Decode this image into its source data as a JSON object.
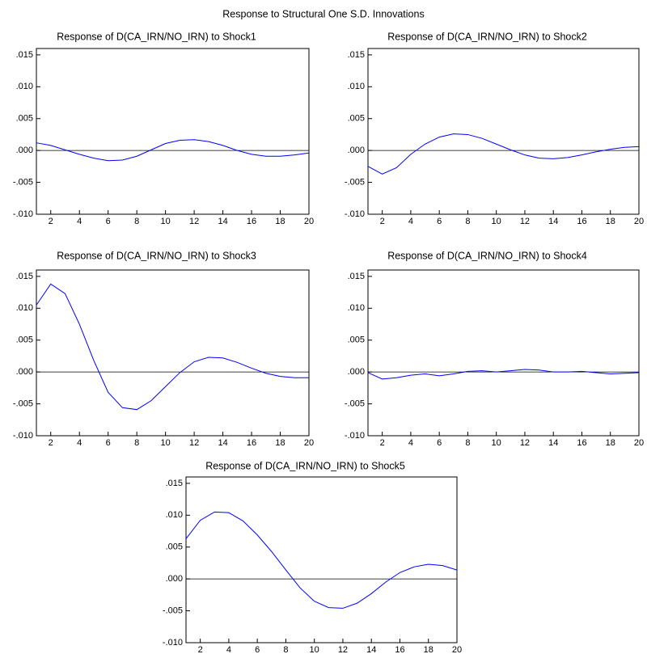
{
  "title": "Response to Structural One S.D. Innovations",
  "chart_data": [
    {
      "type": "line",
      "title": "Response of D(CA_IRN/NO_IRN) to Shock1",
      "x": [
        1,
        2,
        3,
        4,
        5,
        6,
        7,
        8,
        9,
        10,
        11,
        12,
        13,
        14,
        15,
        16,
        17,
        18,
        19,
        20
      ],
      "series": [
        {
          "color": "#0000ff",
          "values": [
            0.0012,
            0.0008,
            0.0001,
            -0.0006,
            -0.0012,
            -0.0016,
            -0.0015,
            -0.0009,
            0.0001,
            0.0011,
            0.0016,
            0.0017,
            0.0014,
            0.0008,
            0.0,
            -0.0006,
            -0.0009,
            -0.0009,
            -0.0007,
            -0.0004
          ]
        }
      ],
      "xlim": [
        1,
        20
      ],
      "xticks": [
        2,
        4,
        6,
        8,
        10,
        12,
        14,
        16,
        18,
        20
      ],
      "ylim": [
        -0.01,
        0.016
      ],
      "yticks": [
        {
          "value": -0.01,
          "label": "-.010"
        },
        {
          "value": -0.005,
          "label": "-.005"
        },
        {
          "value": 0,
          "label": ".000"
        },
        {
          "value": 0.005,
          "label": ".005"
        },
        {
          "value": 0.01,
          "label": ".010"
        },
        {
          "value": 0.015,
          "label": ".015"
        }
      ]
    },
    {
      "type": "line",
      "title": "Response of D(CA_IRN/NO_IRN) to Shock2",
      "x": [
        1,
        2,
        3,
        4,
        5,
        6,
        7,
        8,
        9,
        10,
        11,
        12,
        13,
        14,
        15,
        16,
        17,
        18,
        19,
        20
      ],
      "series": [
        {
          "color": "#0000ff",
          "values": [
            -0.0025,
            -0.0037,
            -0.0027,
            -0.0006,
            0.001,
            0.0021,
            0.0026,
            0.0025,
            0.0019,
            0.001,
            0.0001,
            -0.0007,
            -0.0012,
            -0.0013,
            -0.0011,
            -0.0007,
            -0.0002,
            0.0002,
            0.0005,
            0.0006
          ]
        }
      ],
      "xlim": [
        1,
        20
      ],
      "xticks": [
        2,
        4,
        6,
        8,
        10,
        12,
        14,
        16,
        18,
        20
      ],
      "ylim": [
        -0.01,
        0.016
      ],
      "yticks": [
        {
          "value": -0.01,
          "label": "-.010"
        },
        {
          "value": -0.005,
          "label": "-.005"
        },
        {
          "value": 0,
          "label": ".000"
        },
        {
          "value": 0.005,
          "label": ".005"
        },
        {
          "value": 0.01,
          "label": ".010"
        },
        {
          "value": 0.015,
          "label": ".015"
        }
      ]
    },
    {
      "type": "line",
      "title": "Response of D(CA_IRN/NO_IRN) to Shock3",
      "x": [
        1,
        2,
        3,
        4,
        5,
        6,
        7,
        8,
        9,
        10,
        11,
        12,
        13,
        14,
        15,
        16,
        17,
        18,
        19,
        20
      ],
      "series": [
        {
          "color": "#0000ff",
          "values": [
            0.0105,
            0.0138,
            0.0123,
            0.0075,
            0.0018,
            -0.0032,
            -0.0056,
            -0.0059,
            -0.0045,
            -0.0023,
            -0.0001,
            0.0016,
            0.0023,
            0.0022,
            0.0015,
            0.0006,
            -0.0002,
            -0.0007,
            -0.0009,
            -0.0009
          ]
        }
      ],
      "xlim": [
        1,
        20
      ],
      "xticks": [
        2,
        4,
        6,
        8,
        10,
        12,
        14,
        16,
        18,
        20
      ],
      "ylim": [
        -0.01,
        0.016
      ],
      "yticks": [
        {
          "value": -0.01,
          "label": "-.010"
        },
        {
          "value": -0.005,
          "label": "-.005"
        },
        {
          "value": 0,
          "label": ".000"
        },
        {
          "value": 0.005,
          "label": ".005"
        },
        {
          "value": 0.01,
          "label": ".010"
        },
        {
          "value": 0.015,
          "label": ".015"
        }
      ]
    },
    {
      "type": "line",
      "title": "Response of D(CA_IRN/NO_IRN) to Shock4",
      "x": [
        1,
        2,
        3,
        4,
        5,
        6,
        7,
        8,
        9,
        10,
        11,
        12,
        13,
        14,
        15,
        16,
        17,
        18,
        19,
        20
      ],
      "series": [
        {
          "color": "#0000ff",
          "values": [
            -0.0001,
            -0.0011,
            -0.0009,
            -0.0005,
            -0.0003,
            -0.0006,
            -0.0003,
            0.0001,
            0.0002,
            0.0,
            0.0002,
            0.0004,
            0.0003,
            0.0,
            0.0,
            0.0001,
            -0.0001,
            -0.0003,
            -0.0002,
            -0.0001
          ]
        }
      ],
      "xlim": [
        1,
        20
      ],
      "xticks": [
        2,
        4,
        6,
        8,
        10,
        12,
        14,
        16,
        18,
        20
      ],
      "ylim": [
        -0.01,
        0.016
      ],
      "yticks": [
        {
          "value": -0.01,
          "label": "-.010"
        },
        {
          "value": -0.005,
          "label": "-.005"
        },
        {
          "value": 0,
          "label": ".000"
        },
        {
          "value": 0.005,
          "label": ".005"
        },
        {
          "value": 0.01,
          "label": ".010"
        },
        {
          "value": 0.015,
          "label": ".015"
        }
      ]
    },
    {
      "type": "line",
      "title": "Response of D(CA_IRN/NO_IRN) to Shock5",
      "x": [
        1,
        2,
        3,
        4,
        5,
        6,
        7,
        8,
        9,
        10,
        11,
        12,
        13,
        14,
        15,
        16,
        17,
        18,
        19,
        20
      ],
      "series": [
        {
          "color": "#0000ff",
          "values": [
            0.0063,
            0.0092,
            0.0105,
            0.0104,
            0.0091,
            0.0069,
            0.0043,
            0.0014,
            -0.0014,
            -0.0035,
            -0.0045,
            -0.0046,
            -0.0038,
            -0.0023,
            -0.0005,
            0.001,
            0.0019,
            0.0023,
            0.0021,
            0.0014
          ]
        }
      ],
      "xlim": [
        1,
        20
      ],
      "xticks": [
        2,
        4,
        6,
        8,
        10,
        12,
        14,
        16,
        18,
        20
      ],
      "ylim": [
        -0.01,
        0.016
      ],
      "yticks": [
        {
          "value": -0.01,
          "label": "-.010"
        },
        {
          "value": -0.005,
          "label": "-.005"
        },
        {
          "value": 0,
          "label": ".000"
        },
        {
          "value": 0.005,
          "label": ".005"
        },
        {
          "value": 0.01,
          "label": ".010"
        },
        {
          "value": 0.015,
          "label": ".015"
        }
      ]
    }
  ]
}
